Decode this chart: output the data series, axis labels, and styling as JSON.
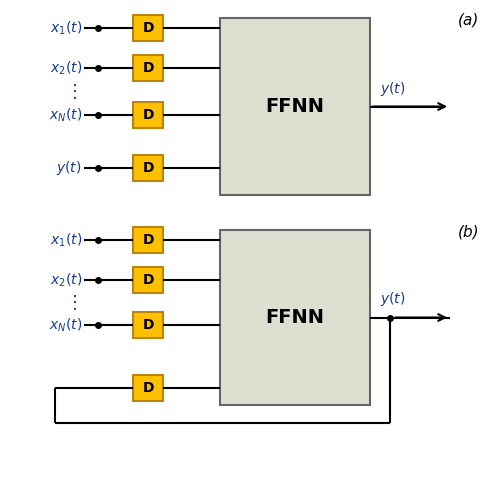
{
  "bg_color": "#ffffff",
  "ffnn_color": "#dde0d0",
  "ffnn_border": "#666666",
  "delay_color": "#ffc000",
  "delay_border": "#b8860b",
  "delay_text": "D",
  "ffnn_text": "FFNN",
  "line_color": "#000000",
  "text_color": "#1a3a8f",
  "label_a": "(a)",
  "label_b": "(b)",
  "figsize": [
    4.9,
    5.0
  ],
  "dpi": 100
}
